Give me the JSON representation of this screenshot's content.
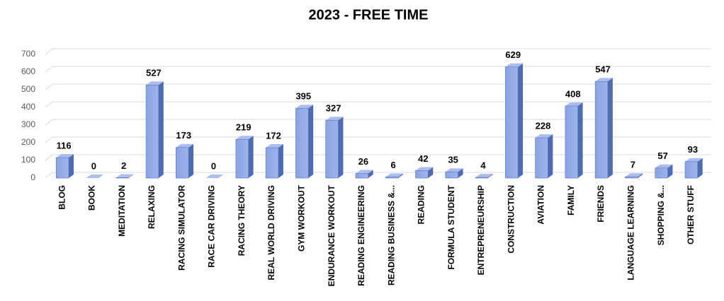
{
  "chart_data": {
    "type": "bar3d",
    "title": "2023 - FREE TIME",
    "categories": [
      "BLOG",
      "BOOK",
      "MEDITATION",
      "RELAXING",
      "RACING SIMULATOR",
      "RACE CAR DRIVING",
      "RACING THEORY",
      "REAL WORLD DRIVING",
      "GYM WORKOUT",
      "ENDURANCE WORKOUT",
      "READING ENGINEERING",
      "READING BUSINESS &...",
      "READING",
      "FORMULA STUDENT",
      "ENTREPRENEURSHIP",
      "CONSTRUCTION",
      "AVIATION",
      "FAMILY",
      "FRIENDS",
      "LANGUAGE LEARNING",
      "SHOPPING &...",
      "OTHER STUFF"
    ],
    "values": [
      116,
      0,
      2,
      527,
      173,
      0,
      219,
      172,
      395,
      327,
      26,
      6,
      42,
      35,
      4,
      629,
      228,
      408,
      547,
      7,
      57,
      93
    ],
    "color": "#7f9ada",
    "ylim": [
      0,
      700
    ],
    "yticks": [
      0,
      100,
      200,
      300,
      400,
      500,
      600,
      700
    ],
    "grid": true
  }
}
